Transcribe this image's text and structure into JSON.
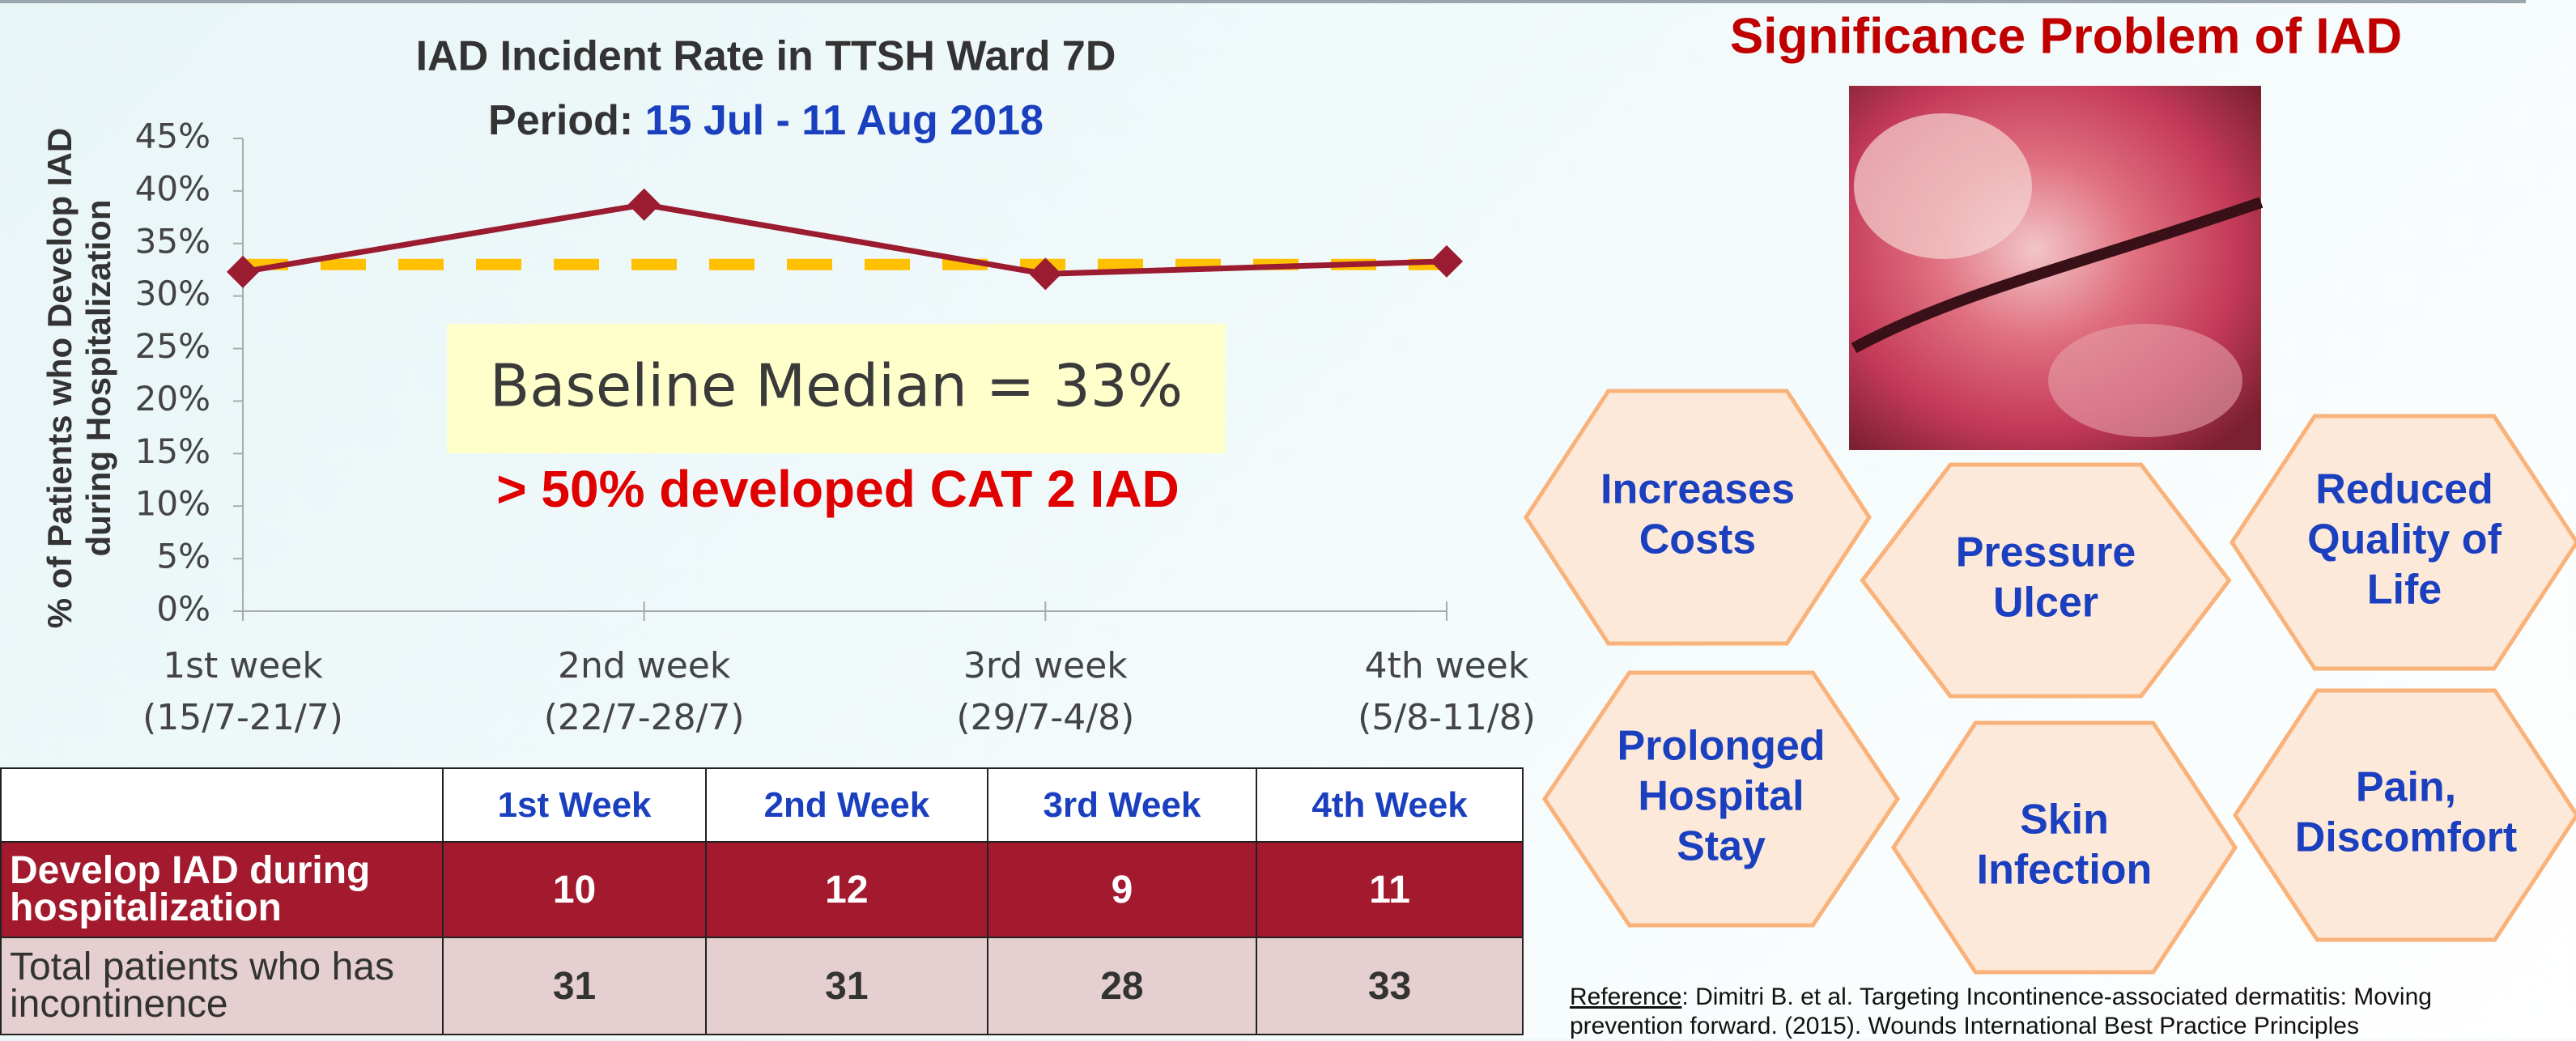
{
  "chart_data": {
    "type": "line",
    "title": "IAD Incident Rate in TTSH Ward 7D",
    "period_label": "Period:",
    "period": "15 Jul - 11 Aug 2018",
    "y_label": [
      "% of Patients who Develop IAD",
      "during Hospitalization"
    ],
    "categories": [
      "1st week",
      "2nd week",
      "3rd week",
      "4th week"
    ],
    "category_dates": [
      "(15/7-21/7)",
      "(22/7-28/7)",
      "(29/7-4/8)",
      "(5/8-11/8)"
    ],
    "series": [
      {
        "color": "#9b1b30",
        "values": [
          32.3,
          38.7,
          32.1,
          33.3
        ]
      }
    ],
    "baseline": {
      "value": 33,
      "color": "#ffc000",
      "style": "dashed"
    },
    "ylim": [
      0,
      45
    ],
    "yticks": [
      {
        "value": 0,
        "label": "0%"
      },
      {
        "value": 5,
        "label": "5%"
      },
      {
        "value": 10,
        "label": "10%"
      },
      {
        "value": 15,
        "label": "15%"
      },
      {
        "value": 20,
        "label": "20%"
      },
      {
        "value": 25,
        "label": "25%"
      },
      {
        "value": 30,
        "label": "30%"
      },
      {
        "value": 35,
        "label": "35%"
      },
      {
        "value": 40,
        "label": "40%"
      },
      {
        "value": 45,
        "label": "45%"
      }
    ],
    "grid": false,
    "annotations": [
      "Baseline Median = 33%",
      "> 50% developed CAT 2 IAD"
    ]
  },
  "table": {
    "header": [
      "1st Week",
      "2nd Week",
      "3rd Week",
      "4th Week"
    ],
    "rows": [
      [
        "Develop IAD during hospitalization",
        10,
        12,
        9,
        11
      ],
      [
        "Total patients who has incontinence",
        31,
        31,
        28,
        33
      ]
    ]
  },
  "panel": {
    "title": "Significance Problem of IAD",
    "hexagons": [
      {
        "lines": [
          "Increases",
          "Costs"
        ]
      },
      {
        "lines": [
          "Pressure",
          "Ulcer"
        ]
      },
      {
        "lines": [
          "Reduced",
          "Quality of",
          "Life"
        ]
      },
      {
        "lines": [
          "Prolonged",
          "Hospital",
          "Stay"
        ]
      },
      {
        "lines": [
          "Skin",
          "Infection"
        ]
      },
      {
        "lines": [
          "Pain,",
          "Discomfort"
        ]
      }
    ],
    "reference_label": "Reference",
    "reference_text": ": Dimitri B. et al. Targeting Incontinence-associated dermatitis: Moving prevention forward. (2015). Wounds International Best Practice Principles"
  }
}
